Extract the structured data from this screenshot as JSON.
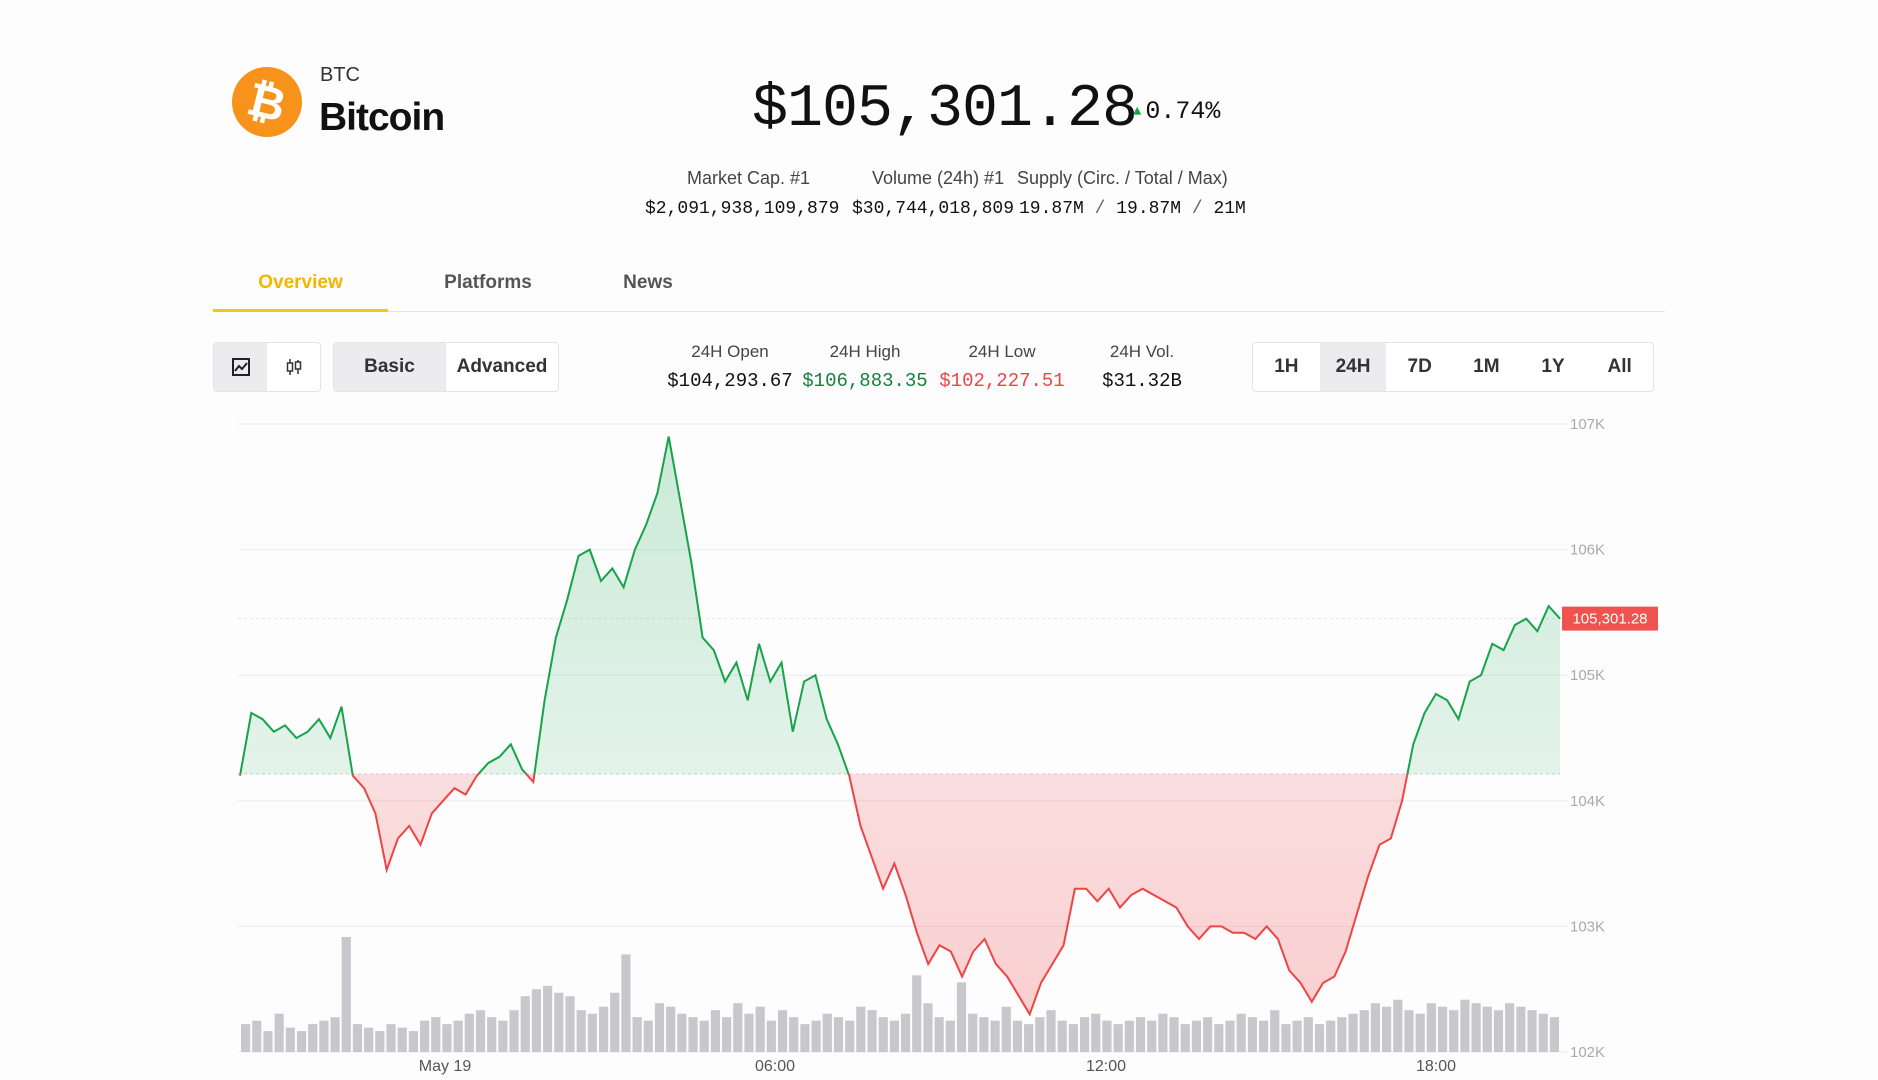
{
  "coin": {
    "symbol": "BTC",
    "name": "Bitcoin",
    "logo_icon": "bitcoin-logo-icon",
    "logo_glyph": "₿",
    "logo_color": "#f7931a",
    "price": "$105,301.28",
    "change": "0.74%",
    "change_direction": "up"
  },
  "stats": {
    "market_cap_label": "Market Cap. #1",
    "market_cap_value": "$2,091,938,109,879",
    "volume_label": "Volume (24h) #1",
    "volume_value": "$30,744,018,809",
    "supply_label": "Supply (Circ. / Total / Max)",
    "supply_circ": "19.87M",
    "supply_total": "19.87M",
    "supply_max": "21M"
  },
  "tabs": [
    {
      "label": "Overview",
      "active": true
    },
    {
      "label": "Platforms",
      "active": false
    },
    {
      "label": "News",
      "active": false
    }
  ],
  "controls": {
    "chart_type_icons": [
      "line-chart-icon",
      "candlestick-icon"
    ],
    "modes": [
      {
        "label": "Basic",
        "active": true
      },
      {
        "label": "Advanced",
        "active": false
      }
    ],
    "ranges": [
      {
        "label": "1H",
        "active": false
      },
      {
        "label": "24H",
        "active": true
      },
      {
        "label": "7D",
        "active": false
      },
      {
        "label": "1M",
        "active": false
      },
      {
        "label": "1Y",
        "active": false
      },
      {
        "label": "All",
        "active": false
      }
    ]
  },
  "ohlc": {
    "open_label": "24H Open",
    "open_value": "$104,293.67",
    "high_label": "24H High",
    "high_value": "$106,883.35",
    "low_label": "24H Low",
    "low_value": "$102,227.51",
    "vol_label": "24H Vol.",
    "vol_value": "$31.32B"
  },
  "colors": {
    "up": "#16a34a",
    "down": "#ef4444",
    "accent": "#f5c518"
  },
  "chart_data": {
    "type": "area",
    "title": "",
    "xlabel": "",
    "ylabel": "",
    "ylim": [
      102000,
      107000
    ],
    "y_ticks": [
      "107K",
      "106K",
      "105K",
      "104K",
      "103K",
      "102K"
    ],
    "x_ticks": [
      "May 19",
      "06:00",
      "12:00",
      "18:00"
    ],
    "baseline": 104213,
    "current_price_label": "105,301.28",
    "grid": true,
    "series": [
      {
        "values": [
          104200,
          104700,
          104650,
          104550,
          104600,
          104500,
          104550,
          104650,
          104500,
          104750,
          104200,
          104100,
          103900,
          103450,
          103700,
          103800,
          103650,
          103900,
          104000,
          104100,
          104050,
          104200,
          104300,
          104350,
          104450,
          104250,
          104150,
          104800,
          105300,
          105600,
          105950,
          106000,
          105750,
          105850,
          105700,
          106000,
          106200,
          106450,
          106900,
          106400,
          105900,
          105300,
          105200,
          104950,
          105100,
          104800,
          105250,
          104950,
          105100,
          104550,
          104950,
          105000,
          104650,
          104450,
          104200,
          103800,
          103550,
          103300,
          103500,
          103250,
          102950,
          102700,
          102850,
          102800,
          102600,
          102800,
          102900,
          102700,
          102600,
          102450,
          102300,
          102550,
          102700,
          102850,
          103300,
          103300,
          103200,
          103300,
          103150,
          103250,
          103300,
          103250,
          103200,
          103150,
          103000,
          102900,
          103000,
          103000,
          102950,
          102950,
          102900,
          103000,
          102900,
          102650,
          102550,
          102400,
          102550,
          102600,
          102800,
          103100,
          103400,
          103650,
          103700,
          104000,
          104450,
          104700,
          104850,
          104800,
          104650,
          104950,
          105000,
          105250,
          105200,
          105400,
          105450,
          105350,
          105550,
          105450
        ],
        "volume": [
          8,
          9,
          6,
          11,
          7,
          6,
          8,
          9,
          10,
          33,
          8,
          7,
          6,
          8,
          7,
          6,
          9,
          10,
          8,
          9,
          11,
          12,
          10,
          9,
          12,
          16,
          18,
          19,
          17,
          16,
          12,
          11,
          13,
          17,
          28,
          10,
          9,
          14,
          13,
          11,
          10,
          9,
          12,
          10,
          14,
          11,
          13,
          9,
          12,
          10,
          8,
          9,
          11,
          10,
          9,
          13,
          12,
          10,
          9,
          11,
          22,
          14,
          10,
          9,
          20,
          11,
          10,
          9,
          13,
          9,
          8,
          10,
          12,
          9,
          8,
          10,
          11,
          9,
          8,
          9,
          10,
          9,
          11,
          10,
          8,
          9,
          10,
          8,
          9,
          11,
          10,
          9,
          12,
          8,
          9,
          10,
          8,
          9,
          10,
          11,
          12,
          14,
          13,
          15,
          12,
          11,
          14,
          13,
          12,
          15,
          14,
          13,
          12,
          14,
          13,
          12,
          11,
          10
        ]
      }
    ]
  }
}
